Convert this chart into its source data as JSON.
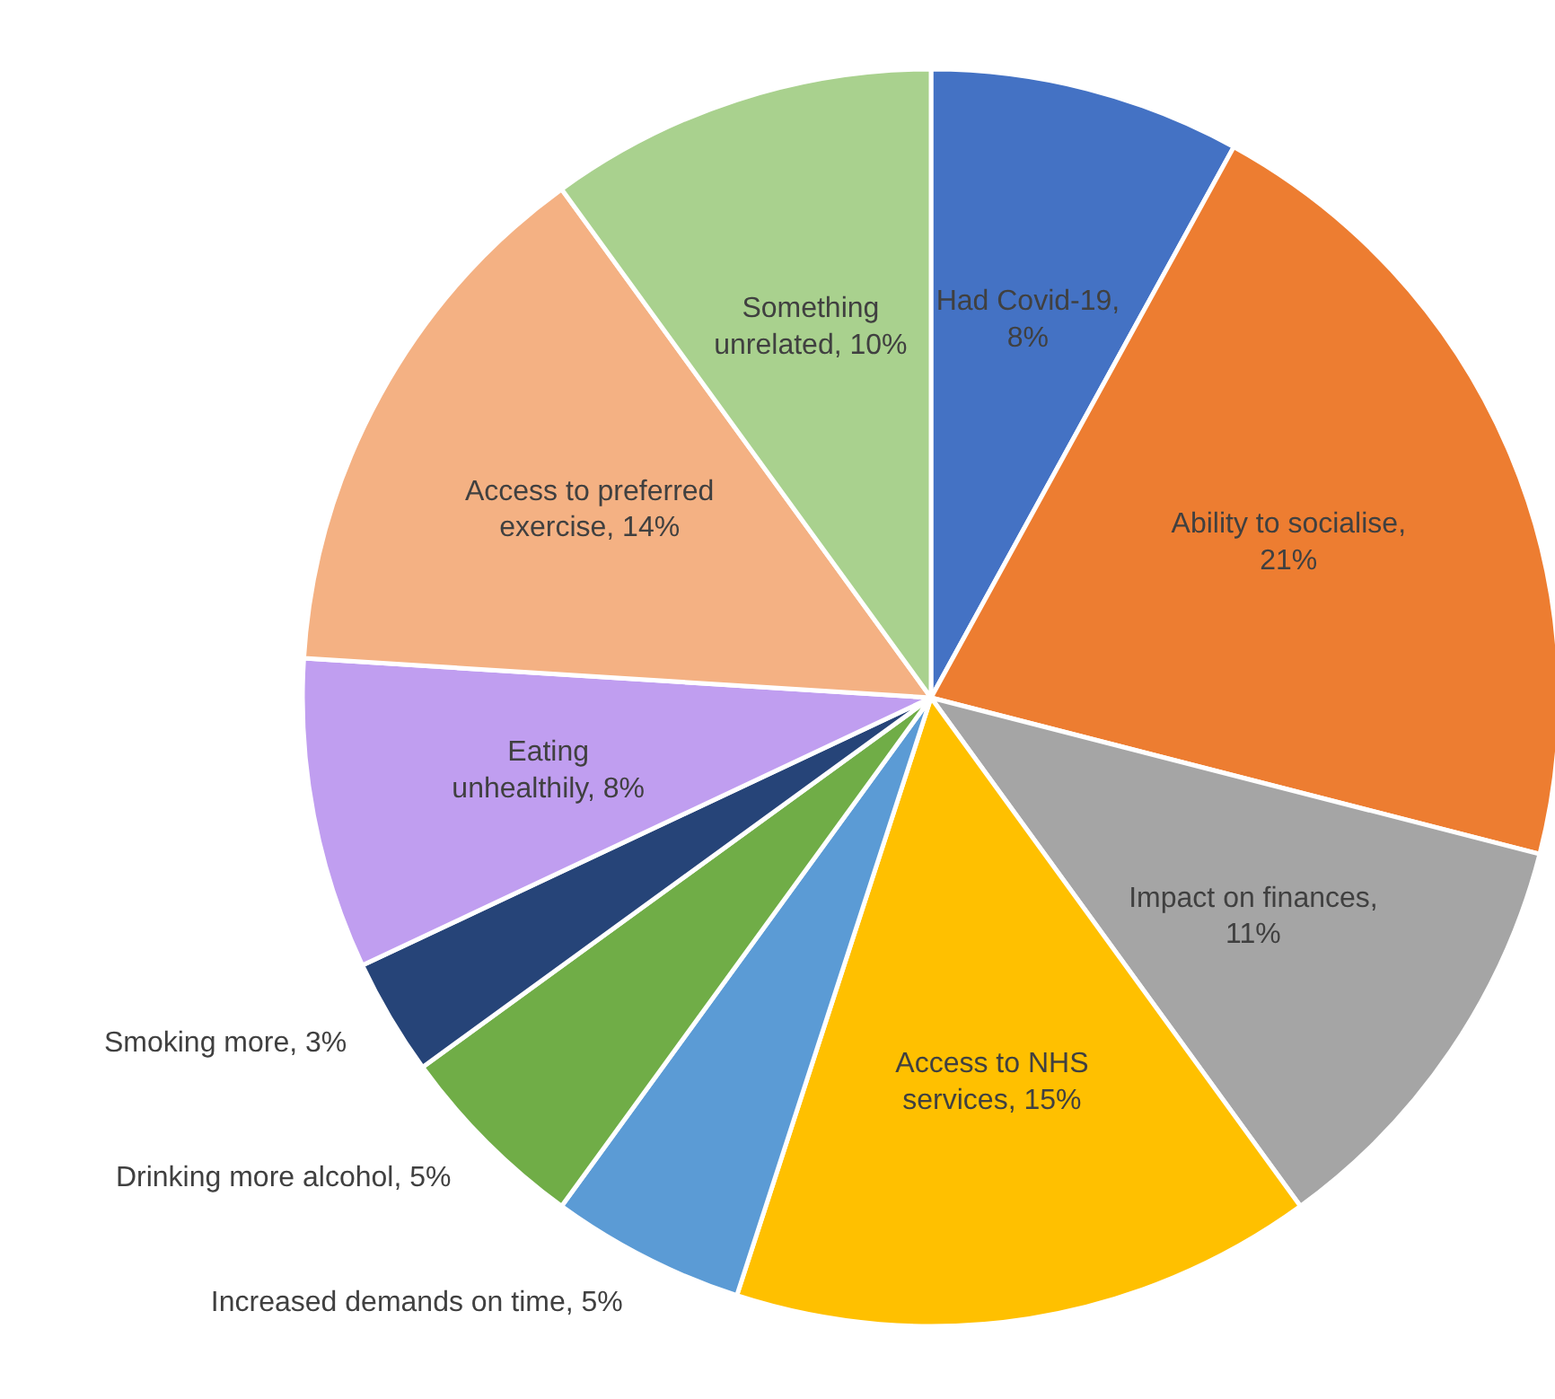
{
  "chart_data": {
    "type": "pie",
    "categories": [
      "Had Covid-19, 8%",
      "Ability to socialise, 21%",
      "Impact on finances, 11%",
      "Access to NHS services, 15%",
      "Increased demands on time, 5%",
      "Drinking more alcohol, 5%",
      "Smoking more, 3%",
      "Eating unhealthily, 8%",
      "Access to preferred exercise, 14%",
      "Something unrelated, 10%"
    ],
    "values": [
      8,
      21,
      11,
      15,
      5,
      5,
      3,
      8,
      14,
      10
    ],
    "colors": [
      "#4472c4",
      "#ed7d31",
      "#a5a5a5",
      "#ffc000",
      "#5b9bd5",
      "#70ad47",
      "#264478",
      "#c09ef0",
      "#f4b183",
      "#a9d18e"
    ]
  }
}
